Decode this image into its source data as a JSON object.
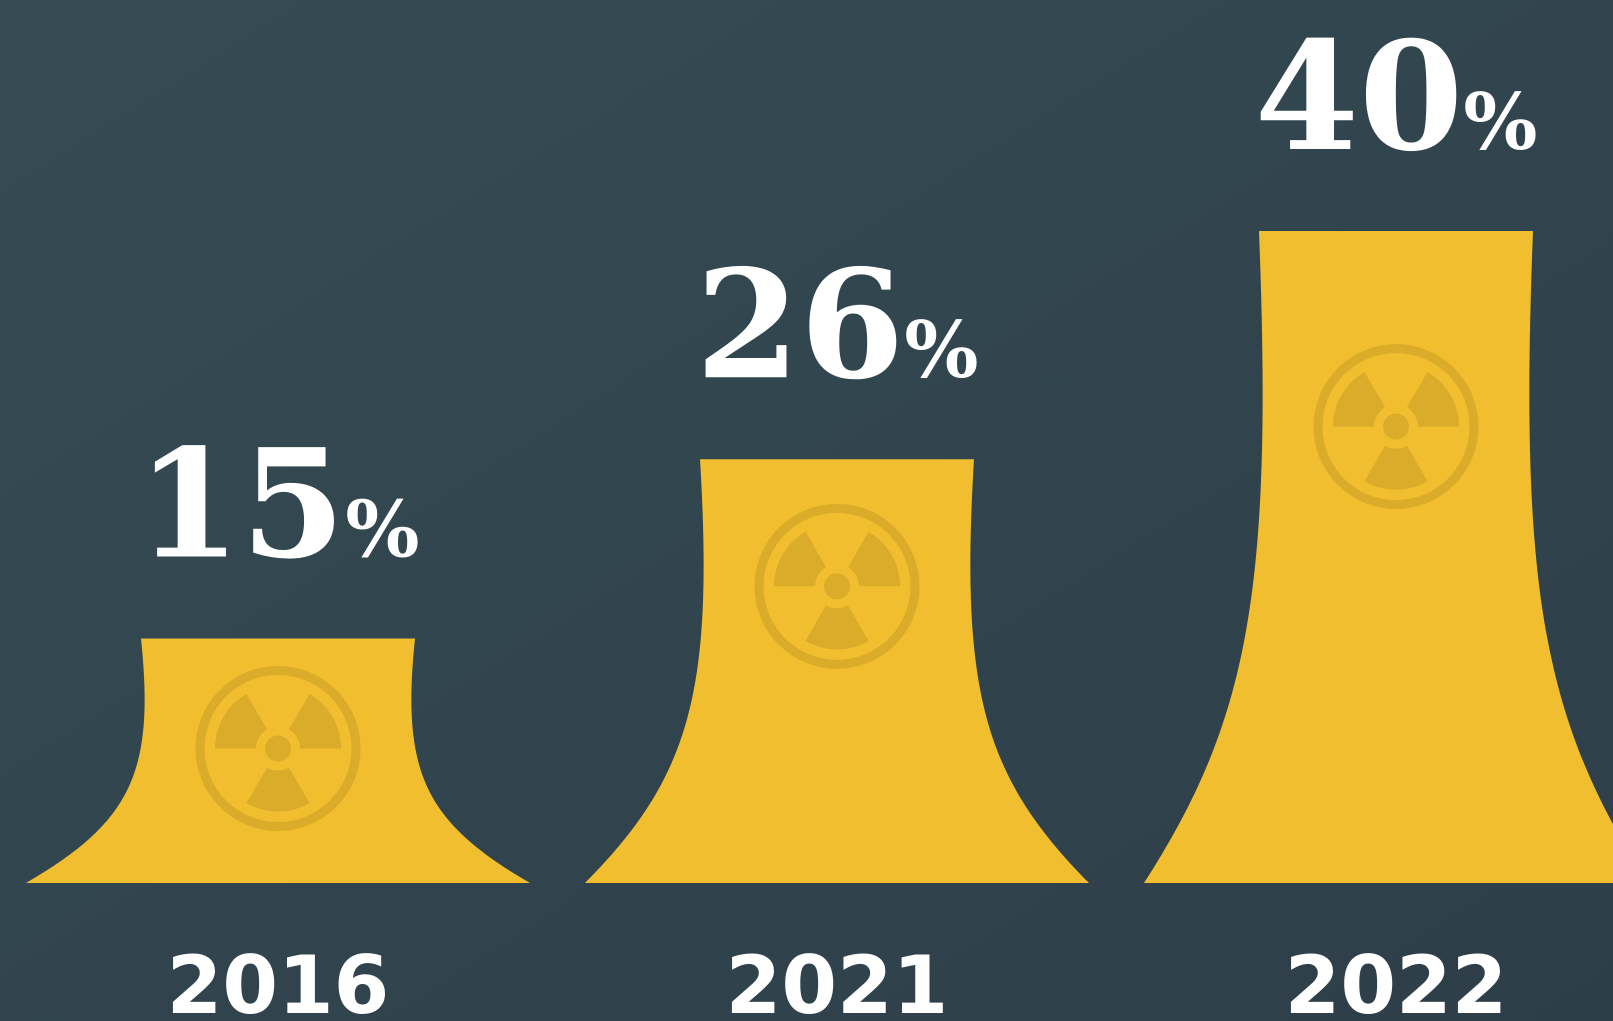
{
  "chart_data": {
    "type": "bar",
    "categories": [
      "2016",
      "2021",
      "2022"
    ],
    "values": [
      15,
      26,
      40
    ],
    "value_labels": [
      "15%",
      "26%",
      "40%"
    ],
    "color": "#f0be2e"
  }
}
